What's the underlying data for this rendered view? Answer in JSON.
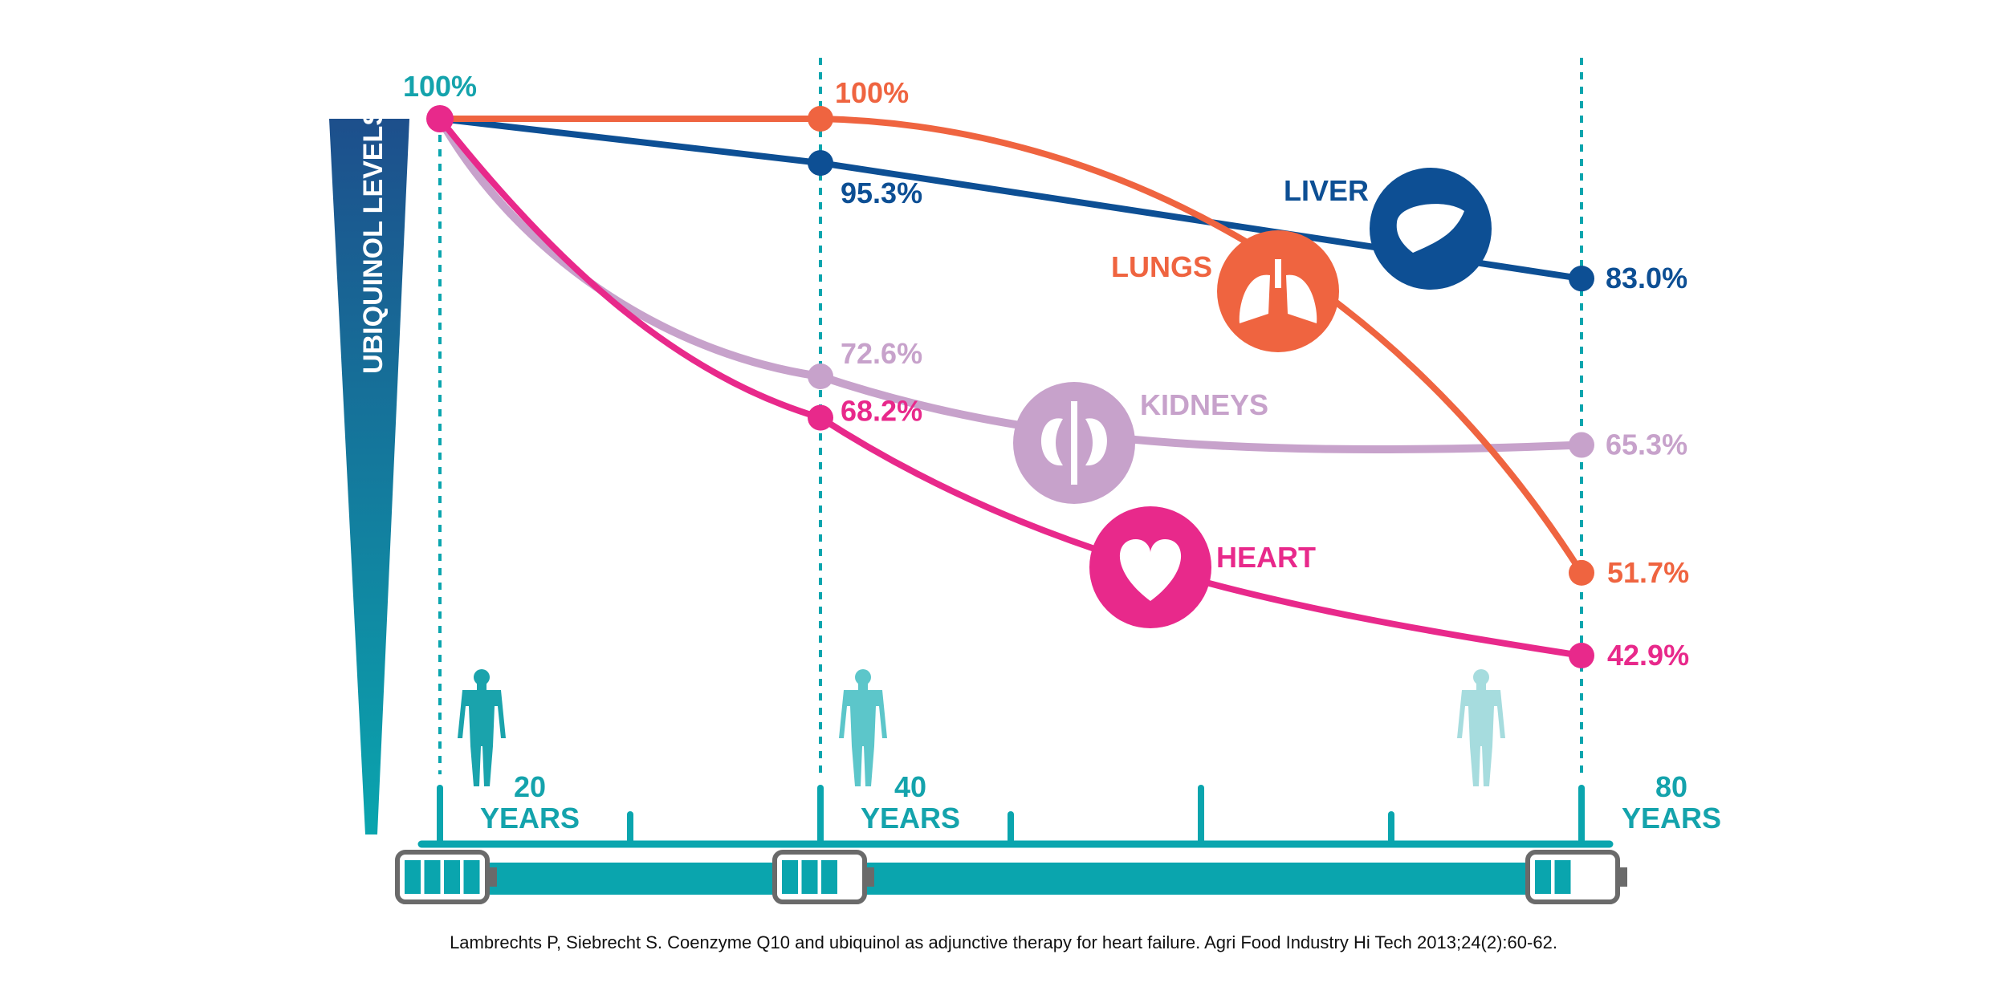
{
  "chart_data": {
    "type": "line",
    "title": "",
    "ylabel": "UBIQUINOL LEVELS",
    "ylim": [
      40,
      100
    ],
    "x": [
      20,
      40,
      80
    ],
    "age_labels": [
      {
        "number": "20",
        "unit": "YEARS"
      },
      {
        "number": "40",
        "unit": "YEARS"
      },
      {
        "number": "80",
        "unit": "YEARS"
      }
    ],
    "start_label": "100%",
    "series": [
      {
        "name": "LIVER",
        "color": "#0d4f94",
        "values": [
          100,
          95.3,
          83.0
        ],
        "labels": [
          "",
          "95.3%",
          "83.0%"
        ]
      },
      {
        "name": "LUNGS",
        "color": "#ef6440",
        "values": [
          100,
          100,
          51.7
        ],
        "labels": [
          "",
          "100%",
          "51.7%"
        ]
      },
      {
        "name": "KIDNEYS",
        "color": "#c7a2cb",
        "values": [
          100,
          72.6,
          65.3
        ],
        "labels": [
          "",
          "72.6%",
          "65.3%"
        ]
      },
      {
        "name": "HEART",
        "color": "#e8298b",
        "values": [
          100,
          68.2,
          42.9
        ],
        "labels": [
          "",
          "68.2%",
          "42.9%"
        ]
      }
    ],
    "battery_levels": [
      4,
      3,
      2
    ]
  },
  "colors": {
    "teal": "#0aa5ae",
    "teal_text": "#14a3ac",
    "axis_dark": "#1d4f8c",
    "start_dot": "#e8298b",
    "battery_outline": "#6a6a6a"
  },
  "icons": {
    "LIVER": "liver-icon",
    "LUNGS": "lungs-icon",
    "KIDNEYS": "kidneys-icon",
    "HEART": "heart-icon"
  },
  "citation": "Lambrechts P, Siebrecht S. Coenzyme Q10 and ubiquinol as adjunctive therapy for heart failure. Agri Food Industry Hi Tech 2013;24(2):60-62."
}
